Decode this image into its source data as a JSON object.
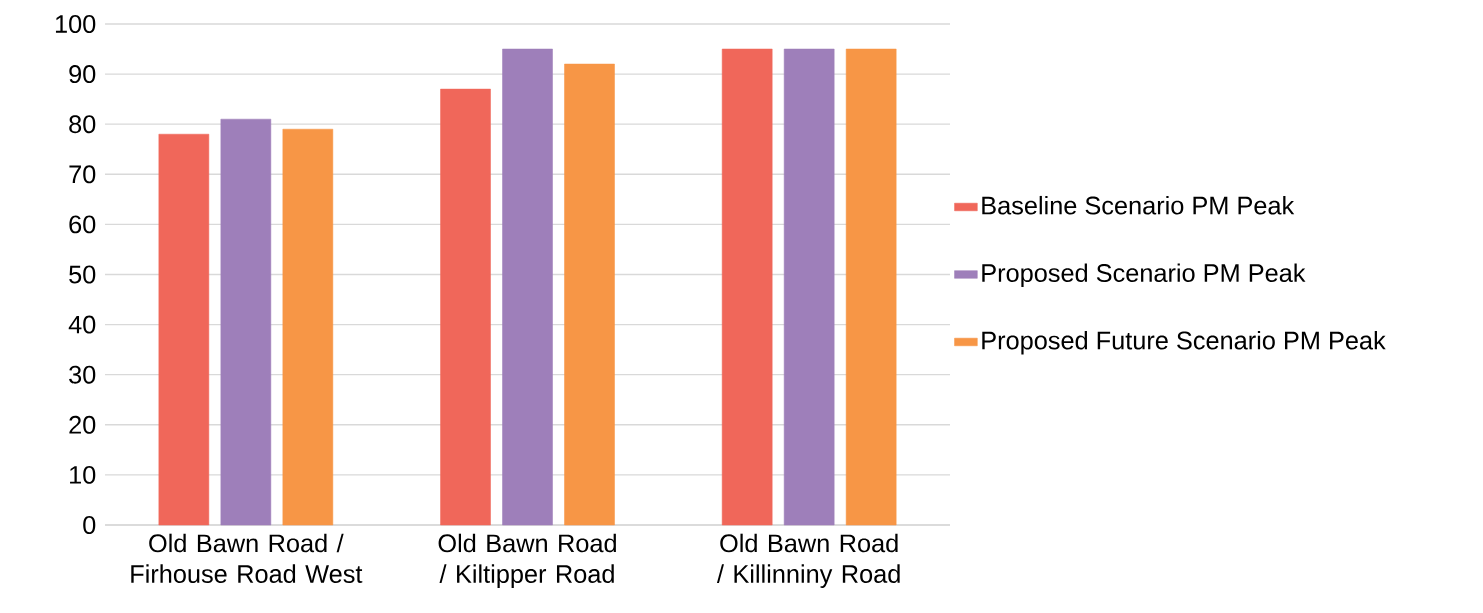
{
  "chart_data": {
    "type": "bar",
    "categories": [
      "Old Bawn Road / Firhouse Road West",
      "Old Bawn Road / Kiltipper Road",
      "Old Bawn Road / Killinniny Road"
    ],
    "series": [
      {
        "name": "Baseline Scenario PM Peak",
        "color": "#f0675a",
        "values": [
          78,
          87,
          95
        ]
      },
      {
        "name": "Proposed Scenario PM Peak",
        "color": "#9e7fba",
        "values": [
          81,
          95,
          95
        ]
      },
      {
        "name": "Proposed Future Scenario PM Peak",
        "color": "#f79646",
        "values": [
          79,
          92,
          95
        ]
      }
    ],
    "ylim": [
      0,
      100
    ],
    "yticks": [
      0,
      10,
      20,
      30,
      40,
      50,
      60,
      70,
      80,
      90,
      100
    ],
    "grid": "y",
    "legend": "right"
  }
}
